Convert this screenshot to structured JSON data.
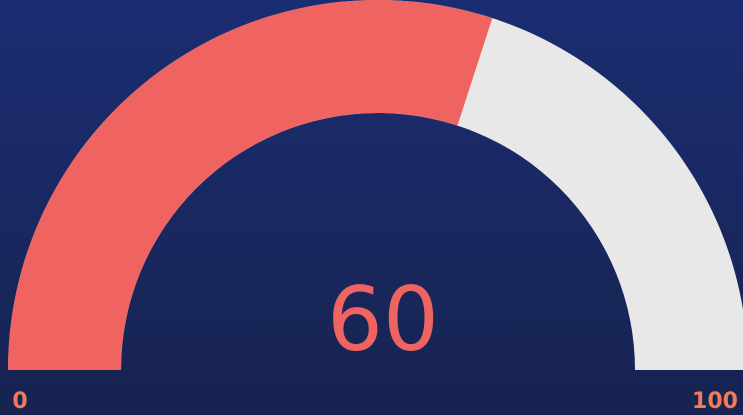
{
  "chart_data": {
    "type": "gauge",
    "value": 60,
    "ylim": [
      0,
      100
    ],
    "color": "#ef6461",
    "track_color": "#e8e8e8"
  }
}
